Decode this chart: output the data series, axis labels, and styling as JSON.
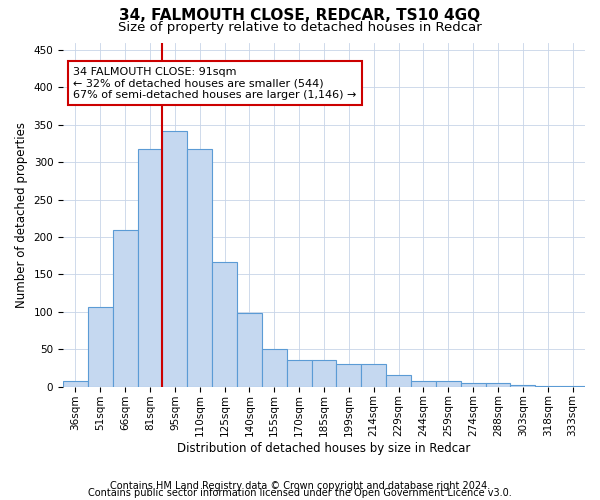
{
  "title": "34, FALMOUTH CLOSE, REDCAR, TS10 4GQ",
  "subtitle": "Size of property relative to detached houses in Redcar",
  "xlabel": "Distribution of detached houses by size in Redcar",
  "ylabel": "Number of detached properties",
  "categories": [
    "36sqm",
    "51sqm",
    "66sqm",
    "81sqm",
    "95sqm",
    "110sqm",
    "125sqm",
    "140sqm",
    "155sqm",
    "170sqm",
    "185sqm",
    "199sqm",
    "214sqm",
    "229sqm",
    "244sqm",
    "259sqm",
    "274sqm",
    "288sqm",
    "303sqm",
    "318sqm",
    "333sqm"
  ],
  "values": [
    7,
    107,
    210,
    318,
    342,
    318,
    167,
    99,
    50,
    35,
    35,
    30,
    30,
    15,
    8,
    8,
    5,
    5,
    2,
    1,
    1
  ],
  "bar_color": "#c5d8f0",
  "bar_edge_color": "#5b9bd5",
  "vline_x_index": 3.5,
  "vline_color": "#cc0000",
  "annotation_text": "34 FALMOUTH CLOSE: 91sqm\n← 32% of detached houses are smaller (544)\n67% of semi-detached houses are larger (1,146) →",
  "annotation_box_color": "#ffffff",
  "annotation_box_edge": "#cc0000",
  "ylim": [
    0,
    460
  ],
  "yticks": [
    0,
    50,
    100,
    150,
    200,
    250,
    300,
    350,
    400,
    450
  ],
  "footer1": "Contains HM Land Registry data © Crown copyright and database right 2024.",
  "footer2": "Contains public sector information licensed under the Open Government Licence v3.0.",
  "bg_color": "#ffffff",
  "grid_color": "#c8d4e8",
  "title_fontsize": 11,
  "subtitle_fontsize": 9.5,
  "axis_label_fontsize": 8.5,
  "tick_fontsize": 7.5,
  "footer_fontsize": 7,
  "annotation_fontsize": 8
}
